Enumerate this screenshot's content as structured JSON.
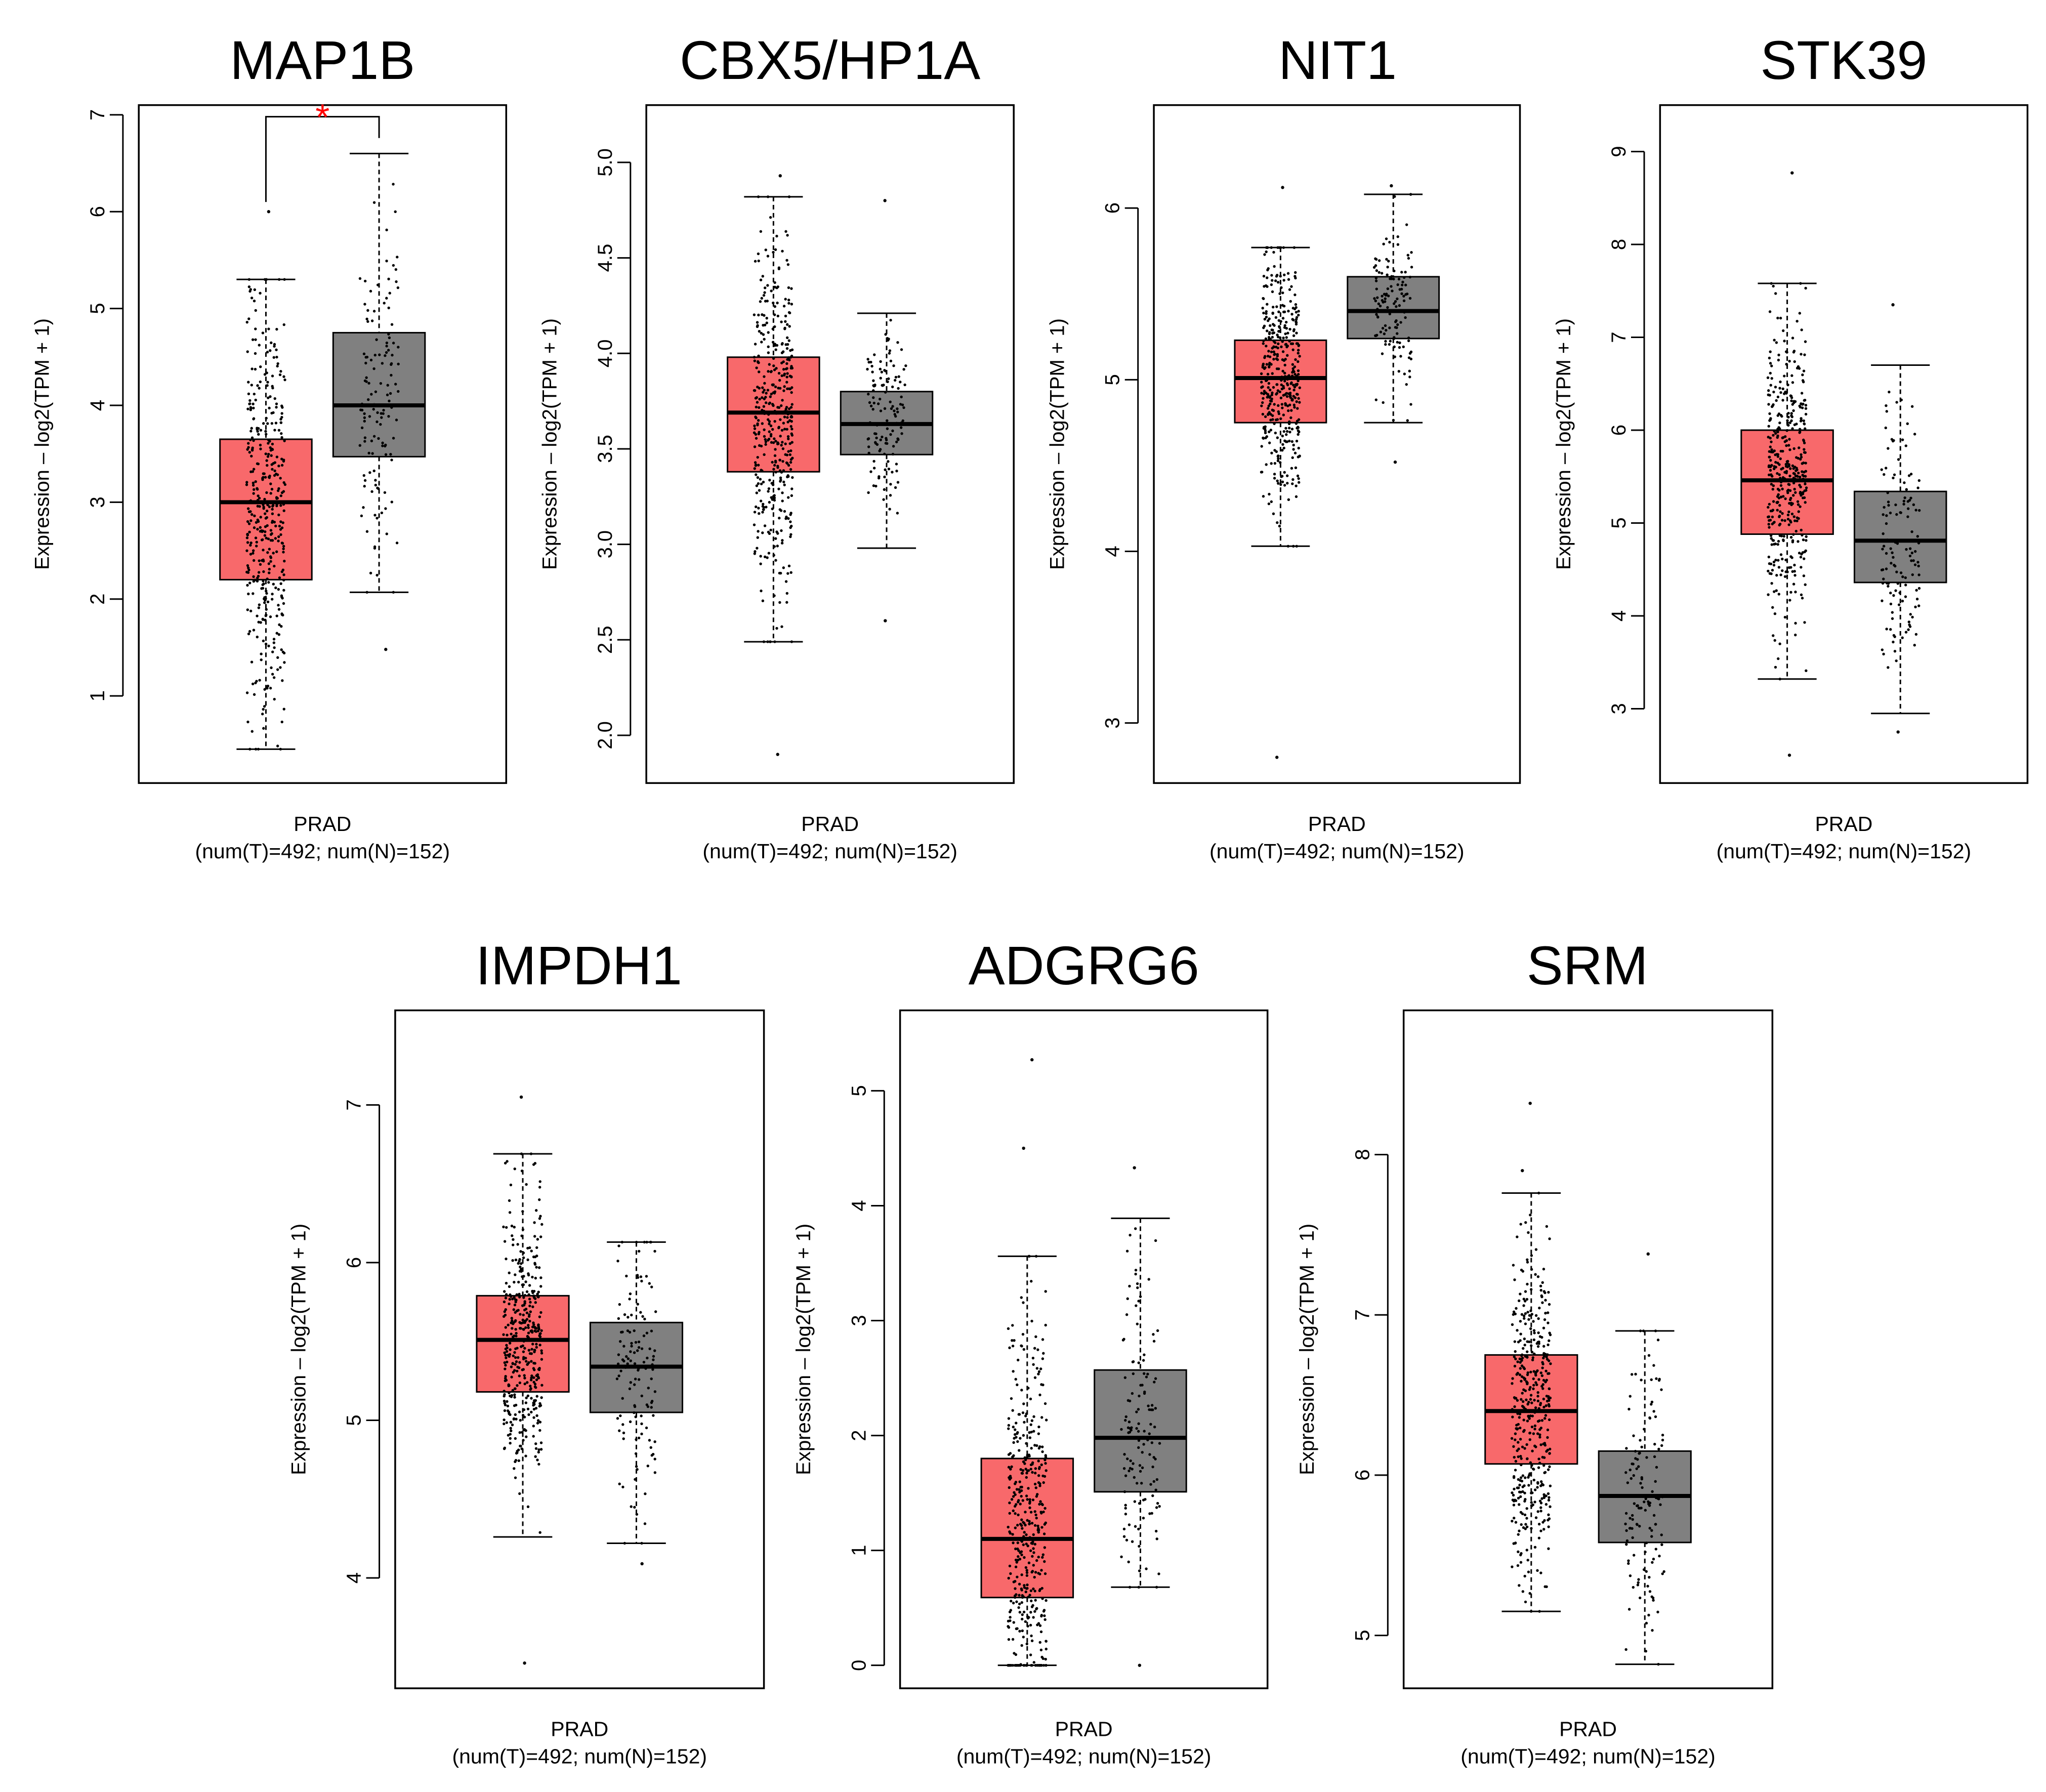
{
  "colors": {
    "tumor_fill": "#F8696B",
    "normal_fill": "#808080",
    "significance": "#FF0000",
    "ink": "#000000"
  },
  "chart_data": [
    {
      "type": "box",
      "title": "MAP1B",
      "ylabel": "Expression – log2(TPM + 1)",
      "xlabel": "PRAD",
      "xlabel_sub": "(num(T)=492; num(N)=152)",
      "ylim": [
        0.1,
        7.1
      ],
      "yticks": [
        1,
        2,
        3,
        4,
        5,
        6,
        7
      ],
      "yticklabels": [
        "1",
        "2",
        "3",
        "4",
        "5",
        "6",
        "7"
      ],
      "significance": "*",
      "series": [
        {
          "group": "T",
          "n": 492,
          "lower_whisker": 0.45,
          "q1": 2.2,
          "median": 3.0,
          "q3": 3.65,
          "upper_whisker": 5.3,
          "outliers": [
            6.0
          ]
        },
        {
          "group": "N",
          "n": 152,
          "lower_whisker": 2.07,
          "q1": 3.47,
          "median": 4.0,
          "q3": 4.75,
          "upper_whisker": 6.6,
          "outliers": [
            1.48
          ]
        }
      ]
    },
    {
      "type": "box",
      "title": "CBX5/HP1A",
      "ylabel": "Expression – log2(TPM + 1)",
      "xlabel": "PRAD",
      "xlabel_sub": "(num(T)=492; num(N)=152)",
      "ylim": [
        1.75,
        5.3
      ],
      "yticks": [
        2.0,
        2.5,
        3.0,
        3.5,
        4.0,
        4.5,
        5.0
      ],
      "yticklabels": [
        "2.0",
        "2.5",
        "3.0",
        "3.5",
        "4.0",
        "4.5",
        "5.0"
      ],
      "series": [
        {
          "group": "T",
          "n": 492,
          "lower_whisker": 2.49,
          "q1": 3.38,
          "median": 3.69,
          "q3": 3.98,
          "upper_whisker": 4.82,
          "outliers": [
            1.9,
            4.93
          ]
        },
        {
          "group": "N",
          "n": 152,
          "lower_whisker": 2.98,
          "q1": 3.47,
          "median": 3.63,
          "q3": 3.8,
          "upper_whisker": 4.21,
          "outliers": [
            2.6,
            4.8
          ]
        }
      ]
    },
    {
      "type": "box",
      "title": "NIT1",
      "ylabel": "Expression – log2(TPM + 1)",
      "xlabel": "PRAD",
      "xlabel_sub": "(num(T)=492; num(N)=152)",
      "ylim": [
        2.65,
        6.6
      ],
      "yticks": [
        3,
        4,
        5,
        6
      ],
      "yticklabels": [
        "3",
        "4",
        "5",
        "6"
      ],
      "series": [
        {
          "group": "T",
          "n": 492,
          "lower_whisker": 4.03,
          "q1": 4.75,
          "median": 5.01,
          "q3": 5.23,
          "upper_whisker": 5.77,
          "outliers": [
            2.8,
            6.12
          ]
        },
        {
          "group": "N",
          "n": 152,
          "lower_whisker": 4.75,
          "q1": 5.24,
          "median": 5.4,
          "q3": 5.6,
          "upper_whisker": 6.08,
          "outliers": [
            4.52,
            6.13
          ]
        }
      ]
    },
    {
      "type": "box",
      "title": "STK39",
      "ylabel": "Expression – log2(TPM + 1)",
      "xlabel": "PRAD",
      "xlabel_sub": "(num(T)=492; num(N)=152)",
      "ylim": [
        2.2,
        9.5
      ],
      "yticks": [
        3,
        4,
        5,
        6,
        7,
        8,
        9
      ],
      "yticklabels": [
        "3",
        "4",
        "5",
        "6",
        "7",
        "8",
        "9"
      ],
      "series": [
        {
          "group": "T",
          "n": 492,
          "lower_whisker": 3.32,
          "q1": 4.88,
          "median": 5.46,
          "q3": 6.0,
          "upper_whisker": 7.58,
          "outliers": [
            2.5,
            8.77
          ]
        },
        {
          "group": "N",
          "n": 152,
          "lower_whisker": 2.95,
          "q1": 4.36,
          "median": 4.81,
          "q3": 5.34,
          "upper_whisker": 6.7,
          "outliers": [
            2.75,
            7.35
          ]
        }
      ]
    },
    {
      "type": "box",
      "title": "IMPDH1",
      "ylabel": "Expression – log2(TPM + 1)",
      "xlabel": "PRAD",
      "xlabel_sub": "(num(T)=492; num(N)=152)",
      "ylim": [
        3.3,
        7.6
      ],
      "yticks": [
        4,
        5,
        6,
        7
      ],
      "yticklabels": [
        "4",
        "5",
        "6",
        "7"
      ],
      "series": [
        {
          "group": "T",
          "n": 492,
          "lower_whisker": 4.26,
          "q1": 5.18,
          "median": 5.51,
          "q3": 5.79,
          "upper_whisker": 6.69,
          "outliers": [
            3.46,
            7.05
          ]
        },
        {
          "group": "N",
          "n": 152,
          "lower_whisker": 4.22,
          "q1": 5.05,
          "median": 5.34,
          "q3": 5.62,
          "upper_whisker": 6.13,
          "outliers": [
            4.09
          ]
        }
      ]
    },
    {
      "type": "box",
      "title": "ADGRG6",
      "ylabel": "Expression – log2(TPM + 1)",
      "xlabel": "PRAD",
      "xlabel_sub": "(num(T)=492; num(N)=152)",
      "ylim": [
        -0.2,
        5.7
      ],
      "yticks": [
        0,
        1,
        2,
        3,
        4,
        5
      ],
      "yticklabels": [
        "0",
        "1",
        "2",
        "3",
        "4",
        "5"
      ],
      "series": [
        {
          "group": "T",
          "n": 492,
          "lower_whisker": 0.0,
          "q1": 0.59,
          "median": 1.1,
          "q3": 1.8,
          "upper_whisker": 3.56,
          "outliers": [
            4.5,
            5.27
          ]
        },
        {
          "group": "N",
          "n": 152,
          "lower_whisker": 0.68,
          "q1": 1.51,
          "median": 1.98,
          "q3": 2.57,
          "upper_whisker": 3.89,
          "outliers": [
            0.0,
            4.33
          ]
        }
      ]
    },
    {
      "type": "box",
      "title": "SRM",
      "ylabel": "Expression – log2(TPM + 1)",
      "xlabel": "PRAD",
      "xlabel_sub": "(num(T)=492; num(N)=152)",
      "ylim": [
        4.67,
        8.9
      ],
      "yticks": [
        5,
        6,
        7,
        8
      ],
      "yticklabels": [
        "5",
        "6",
        "7",
        "8"
      ],
      "series": [
        {
          "group": "T",
          "n": 492,
          "lower_whisker": 5.15,
          "q1": 6.07,
          "median": 6.4,
          "q3": 6.75,
          "upper_whisker": 7.76,
          "outliers": [
            8.32,
            7.9
          ]
        },
        {
          "group": "N",
          "n": 152,
          "lower_whisker": 4.82,
          "q1": 5.58,
          "median": 5.87,
          "q3": 6.15,
          "upper_whisker": 6.9,
          "outliers": [
            7.38
          ]
        }
      ]
    }
  ]
}
